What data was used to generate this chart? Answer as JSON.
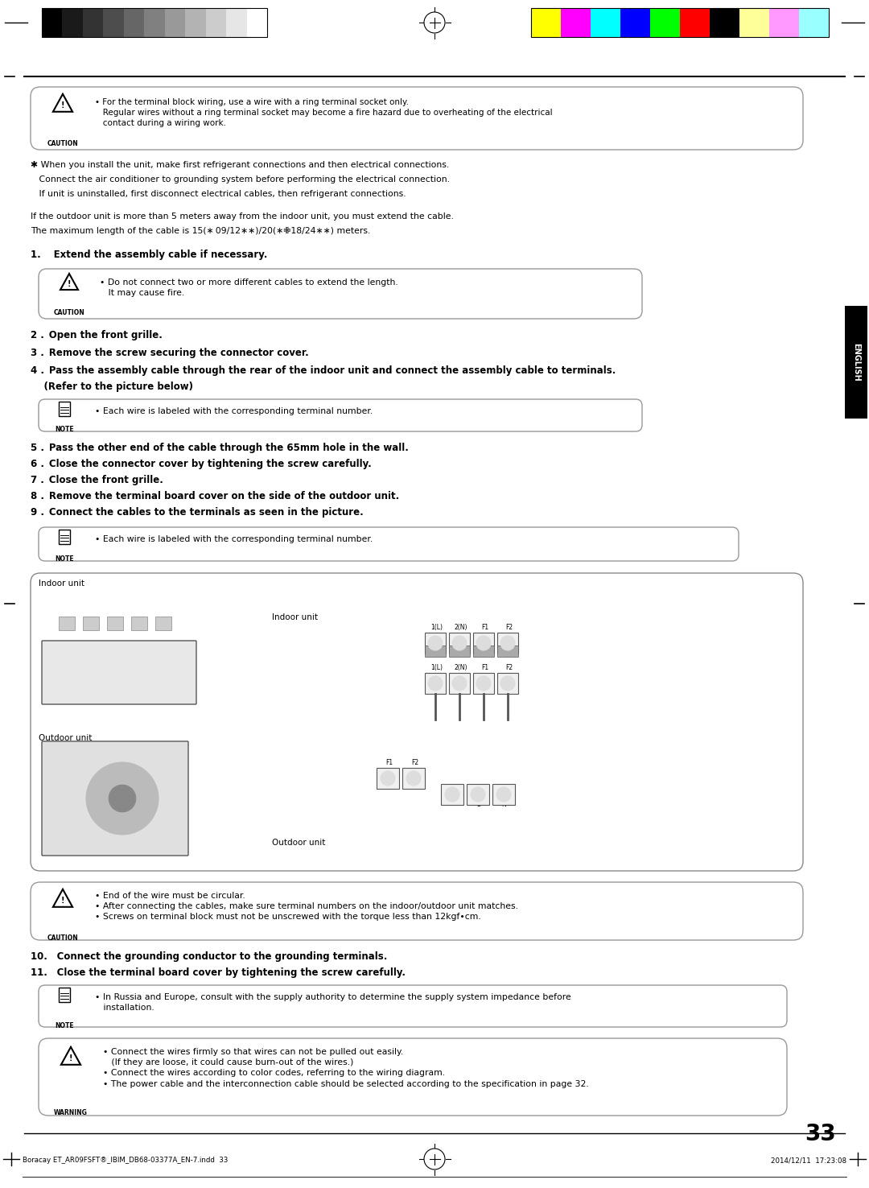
{
  "page_number": "33",
  "footer_left": "Boracay ET_AR09FSFT®_IBIM_DB68-03377A_EN-7.indd  33",
  "footer_right": "2014/12/11  17:23:08",
  "section_label_right": "ENGLISH",
  "caution_box_1_text": "• For the terminal block wiring, use a wire with a ring terminal socket only.\n   Regular wires without a ring terminal socket may become a fire hazard due to overheating of the electrical\n   contact during a wiring work.",
  "asterisk_text_line1": "✱ When you install the unit, make first refrigerant connections and then electrical connections.",
  "asterisk_text_line2": "   Connect the air conditioner to grounding system before performing the electrical connection.",
  "asterisk_text_line3": "   If unit is uninstalled, first disconnect electrical cables, then refrigerant connections.",
  "intro_line1": "If the outdoor unit is more than 5 meters away from the indoor unit, you must extend the cable.",
  "intro_line2": "The maximum length of the cable is 15(∗ 09/12∗∗)/20(∗✙18/24∗∗) meters.",
  "step1": "1.  Extend the assembly cable if necessary.",
  "caution_box_2_text": "• Do not connect two or more different cables to extend the length.\n   It may cause fire.",
  "step2": "2 . Open the front grille.",
  "step3": "3 . Remove the screw securing the connector cover.",
  "step4_line1": "4 . Pass the assembly cable through the rear of the indoor unit and connect the assembly cable to terminals.",
  "step4_line2": "    (Refer to the picture below)",
  "note_box_1_text": "• Each wire is labeled with the corresponding terminal number.",
  "step5": "5 . Pass the other end of the cable through the 65mm hole in the wall.",
  "step6": "6 . Close the connector cover by tightening the screw carefully.",
  "step7": "7 . Close the front grille.",
  "step8": "8 . Remove the terminal board cover on the side of the outdoor unit.",
  "step9": "9 . Connect the cables to the terminals as seen in the picture.",
  "note_box_2_text": "• Each wire is labeled with the corresponding terminal number.",
  "diagram_indoor_label_tl": "Indoor unit",
  "diagram_indoor_label_inner": "Indoor unit",
  "diagram_outdoor_label_tl": "Outdoor unit",
  "diagram_outdoor_label_inner": "Outdoor unit",
  "caution_box_3_text": "• End of the wire must be circular.\n• After connecting the cables, make sure terminal numbers on the indoor/outdoor unit matches.\n• Screws on terminal block must not be unscrewed with the torque less than 12kgf•cm.",
  "step10": "10. Connect the grounding conductor to the grounding terminals.",
  "step11": "11. Close the terminal board cover by tightening the screw carefully.",
  "note_box_3_text": "• In Russia and Europe, consult with the supply authority to determine the supply system impedance before\n   installation.",
  "warning_box_text": "• Connect the wires firmly so that wires can not be pulled out easily.\n   (If they are loose, it could cause burn-out of the wires.)\n• Connect the wires according to color codes, referring to the wiring diagram.\n• The power cable and the interconnection cable should be selected according to the specification in page 32.",
  "grayscale_colors": [
    "#000000",
    "#1a1a1a",
    "#333333",
    "#4d4d4d",
    "#666666",
    "#808080",
    "#999999",
    "#b3b3b3",
    "#cccccc",
    "#e6e6e6",
    "#ffffff"
  ],
  "color_bars": [
    "#ffff00",
    "#ff00ff",
    "#00ffff",
    "#0000ff",
    "#00ff00",
    "#ff0000",
    "#000000",
    "#ffff99",
    "#ff99ff",
    "#99ffff"
  ],
  "bg_color": "#ffffff",
  "box_border_color": "#999999",
  "text_color": "#000000"
}
